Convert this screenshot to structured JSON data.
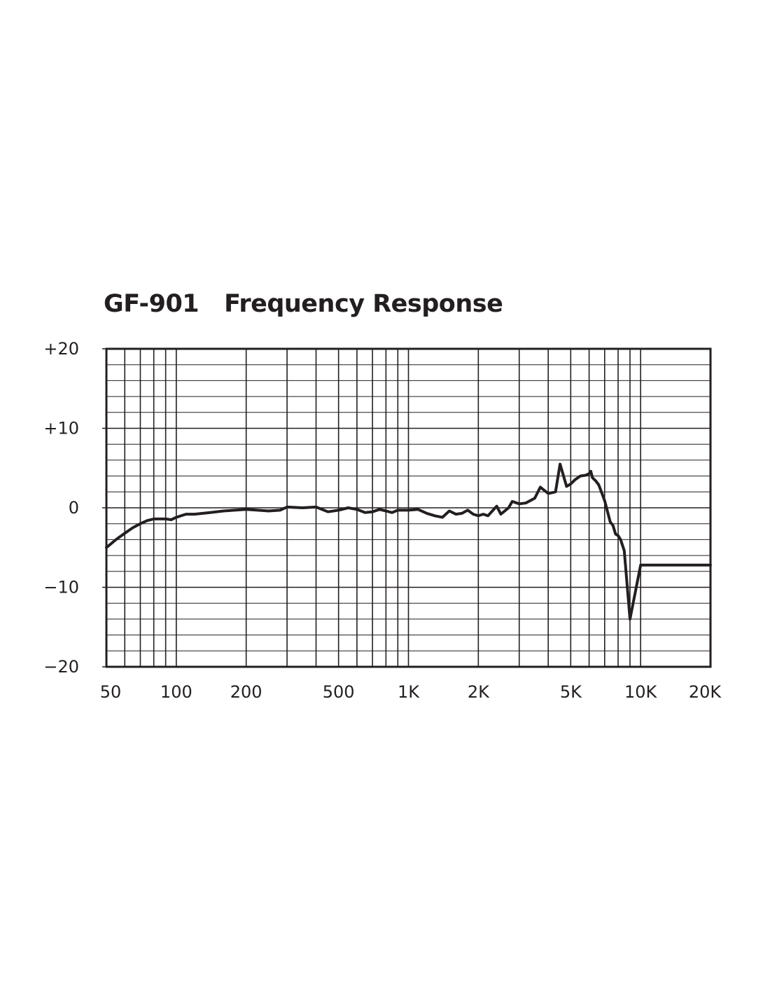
{
  "chart_data": {
    "type": "line",
    "title_model": "GF-901",
    "title_text": "Frequency Response",
    "xscale": "log",
    "xlim": [
      50,
      20000
    ],
    "ylim": [
      -20,
      20
    ],
    "x_ticks": [
      {
        "value": 50,
        "label": "50"
      },
      {
        "value": 100,
        "label": "100"
      },
      {
        "value": 200,
        "label": "200"
      },
      {
        "value": 500,
        "label": "500"
      },
      {
        "value": 1000,
        "label": "1K"
      },
      {
        "value": 2000,
        "label": "2K"
      },
      {
        "value": 5000,
        "label": "5K"
      },
      {
        "value": 10000,
        "label": "10K"
      },
      {
        "value": 20000,
        "label": "20K"
      }
    ],
    "y_ticks": [
      {
        "value": 20,
        "label": "+20"
      },
      {
        "value": 10,
        "label": "+10"
      },
      {
        "value": 0,
        "label": "0"
      },
      {
        "value": -10,
        "label": "−10"
      },
      {
        "value": -20,
        "label": "−20"
      }
    ],
    "x_grid_values": [
      60,
      70,
      80,
      90,
      100,
      200,
      300,
      400,
      500,
      600,
      700,
      800,
      900,
      1000,
      2000,
      3000,
      4000,
      5000,
      6000,
      7000,
      8000,
      9000,
      10000
    ],
    "y_minor_step": 2,
    "series": [
      {
        "name": "GF-901",
        "x": [
          50,
          55,
          60,
          65,
          70,
          75,
          80,
          90,
          95,
          100,
          110,
          120,
          140,
          160,
          200,
          250,
          280,
          300,
          350,
          400,
          450,
          500,
          550,
          600,
          650,
          700,
          750,
          800,
          850,
          900,
          1000,
          1100,
          1200,
          1300,
          1400,
          1500,
          1600,
          1700,
          1800,
          1900,
          2000,
          2100,
          2200,
          2400,
          2500,
          2700,
          2800,
          3000,
          3200,
          3500,
          3700,
          4000,
          4300,
          4500,
          4800,
          5000,
          5200,
          5500,
          5800,
          6000,
          6100,
          6200,
          6400,
          6600,
          7000,
          7400,
          7600,
          7800,
          8000,
          8200,
          8500,
          9000,
          10000,
          11000,
          12000,
          13000,
          14000,
          15000,
          17000,
          19500,
          20000,
          20200
        ],
        "values": [
          -5.0,
          -4.0,
          -3.2,
          -2.5,
          -2.0,
          -1.6,
          -1.4,
          -1.4,
          -1.5,
          -1.2,
          -0.8,
          -0.8,
          -0.6,
          -0.4,
          -0.2,
          -0.4,
          -0.3,
          0.1,
          0.0,
          0.1,
          -0.5,
          -0.3,
          0.0,
          -0.2,
          -0.6,
          -0.5,
          -0.2,
          -0.4,
          -0.6,
          -0.3,
          -0.3,
          -0.2,
          -0.7,
          -1.0,
          -1.2,
          -0.4,
          -0.8,
          -0.7,
          -0.3,
          -0.8,
          -1.0,
          -0.8,
          -1.0,
          0.2,
          -0.8,
          0.0,
          0.8,
          0.5,
          0.6,
          1.2,
          2.6,
          1.8,
          2.0,
          5.5,
          2.7,
          3.0,
          3.5,
          4.0,
          4.1,
          4.3,
          4.6,
          3.8,
          3.4,
          2.9,
          0.9,
          -1.8,
          -2.2,
          -3.3,
          -3.5,
          -4.0,
          -5.4,
          -14.0,
          -7.2,
          -7.2,
          -7.2,
          -7.2,
          -7.2,
          -7.2,
          -7.2,
          -7.2,
          -7.2,
          -7.2
        ]
      }
    ]
  }
}
